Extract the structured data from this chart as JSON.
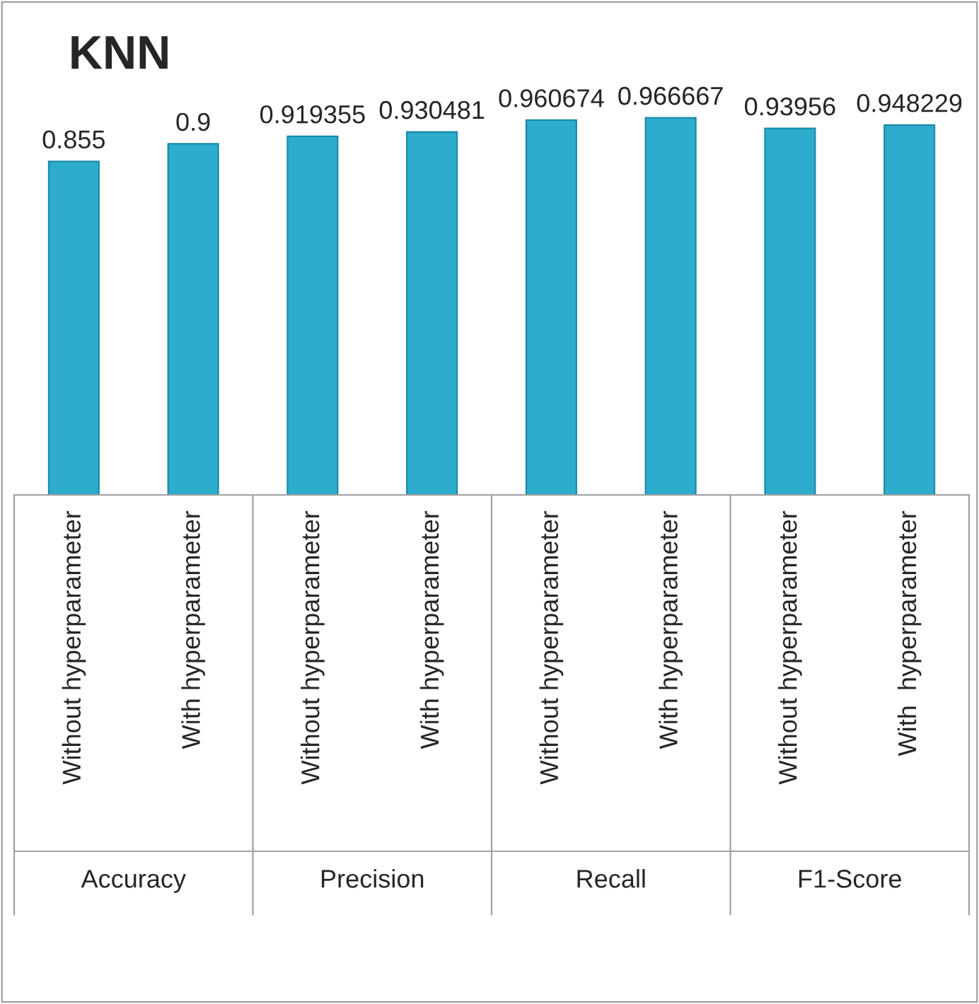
{
  "chart_data": {
    "type": "bar",
    "title": "KNN",
    "categories": [
      "Without hyperparameter",
      "With hyperparameter",
      "Without hyperparameter",
      "With hyperparameter",
      "Without hyperparameter",
      "With hyperparameter",
      "Without hyperparameter",
      "With  hyperparameter"
    ],
    "values": [
      0.855,
      0.9,
      0.919355,
      0.930481,
      0.960674,
      0.966667,
      0.93956,
      0.948229
    ],
    "color": "#2eaccd",
    "tick_labels": "x",
    "data_labels": true,
    "grid": false,
    "legend": false,
    "annotations": [
      "Accuracy",
      "Precision",
      "Recall",
      "F1-Score"
    ]
  }
}
